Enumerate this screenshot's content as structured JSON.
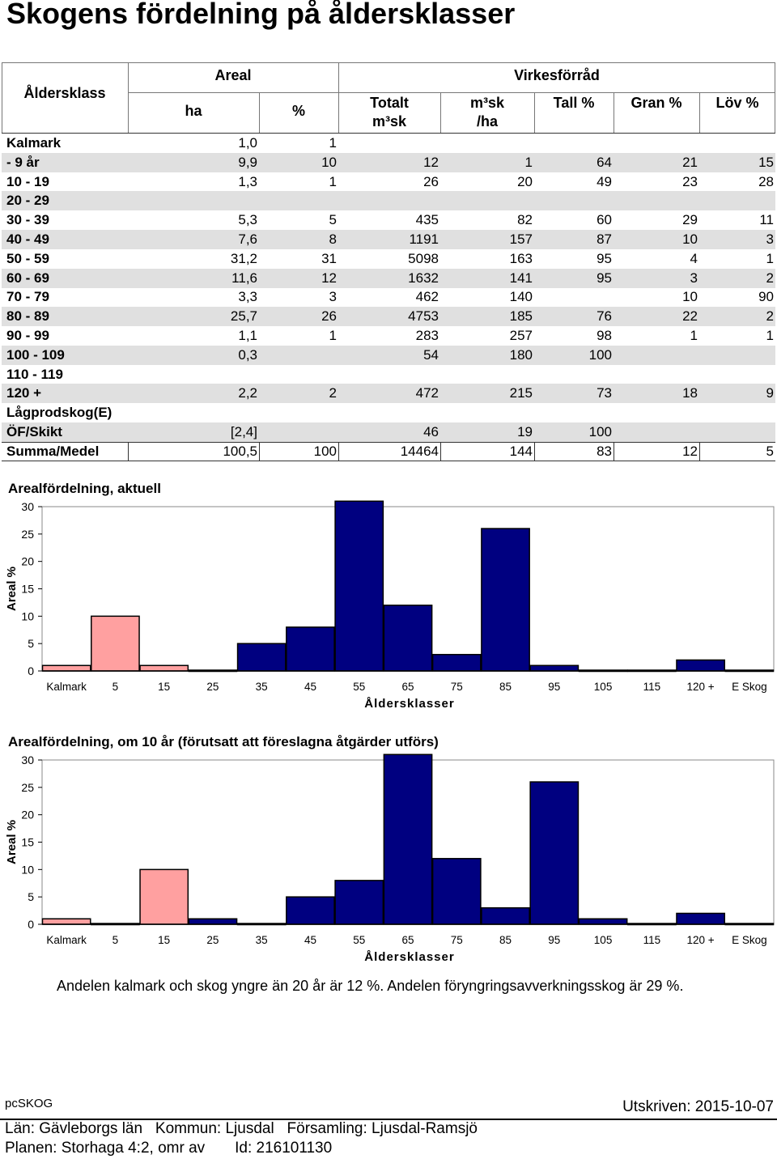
{
  "title": "Skogens fördelning på åldersklasser",
  "table": {
    "headers": {
      "alder": "Åldersklass",
      "areal": "Areal",
      "virkes": "Virkesförråd",
      "ha": "ha",
      "pct": "%",
      "totalt1": "Totalt",
      "totalt2": "m³sk",
      "msk1": "m³sk",
      "msk2": "/ha",
      "tall": "Tall %",
      "gran": "Gran %",
      "lov": "Löv %"
    },
    "rows": [
      {
        "label": "Kalmark",
        "ha": "1,0",
        "pct": "1",
        "tot": "",
        "msk": "",
        "tall": "",
        "gran": "",
        "lov": ""
      },
      {
        "label": "- 9 år",
        "ha": "9,9",
        "pct": "10",
        "tot": "12",
        "msk": "1",
        "tall": "64",
        "gran": "21",
        "lov": "15"
      },
      {
        "label": "10 - 19",
        "ha": "1,3",
        "pct": "1",
        "tot": "26",
        "msk": "20",
        "tall": "49",
        "gran": "23",
        "lov": "28"
      },
      {
        "label": "20 - 29",
        "ha": "",
        "pct": "",
        "tot": "",
        "msk": "",
        "tall": "",
        "gran": "",
        "lov": ""
      },
      {
        "label": "30 - 39",
        "ha": "5,3",
        "pct": "5",
        "tot": "435",
        "msk": "82",
        "tall": "60",
        "gran": "29",
        "lov": "11"
      },
      {
        "label": "40 - 49",
        "ha": "7,6",
        "pct": "8",
        "tot": "1191",
        "msk": "157",
        "tall": "87",
        "gran": "10",
        "lov": "3"
      },
      {
        "label": "50 - 59",
        "ha": "31,2",
        "pct": "31",
        "tot": "5098",
        "msk": "163",
        "tall": "95",
        "gran": "4",
        "lov": "1"
      },
      {
        "label": "60 - 69",
        "ha": "11,6",
        "pct": "12",
        "tot": "1632",
        "msk": "141",
        "tall": "95",
        "gran": "3",
        "lov": "2"
      },
      {
        "label": "70 - 79",
        "ha": "3,3",
        "pct": "3",
        "tot": "462",
        "msk": "140",
        "tall": "",
        "gran": "10",
        "lov": "90"
      },
      {
        "label": "80 - 89",
        "ha": "25,7",
        "pct": "26",
        "tot": "4753",
        "msk": "185",
        "tall": "76",
        "gran": "22",
        "lov": "2"
      },
      {
        "label": "90 - 99",
        "ha": "1,1",
        "pct": "1",
        "tot": "283",
        "msk": "257",
        "tall": "98",
        "gran": "1",
        "lov": "1"
      },
      {
        "label": "100 - 109",
        "ha": "0,3",
        "pct": "",
        "tot": "54",
        "msk": "180",
        "tall": "100",
        "gran": "",
        "lov": ""
      },
      {
        "label": "110 - 119",
        "ha": "",
        "pct": "",
        "tot": "",
        "msk": "",
        "tall": "",
        "gran": "",
        "lov": ""
      },
      {
        "label": "120 +",
        "ha": "2,2",
        "pct": "2",
        "tot": "472",
        "msk": "215",
        "tall": "73",
        "gran": "18",
        "lov": "9"
      },
      {
        "label": "Lågprodskog(E)",
        "ha": "",
        "pct": "",
        "tot": "",
        "msk": "",
        "tall": "",
        "gran": "",
        "lov": ""
      },
      {
        "label": "ÖF/Skikt",
        "ha": "[2,4]",
        "pct": "",
        "tot": "46",
        "msk": "19",
        "tall": "100",
        "gran": "",
        "lov": ""
      },
      {
        "label": "Summa/Medel",
        "ha": "100,5",
        "pct": "100",
        "tot": "14464",
        "msk": "144",
        "tall": "83",
        "gran": "12",
        "lov": "5"
      }
    ]
  },
  "chart_data": [
    {
      "type": "bar",
      "title": "Arealfördelning, aktuell",
      "xlabel": "Åldersklasser",
      "ylabel": "Areal %",
      "ylim": [
        0,
        30
      ],
      "yticks": [
        0,
        5,
        10,
        15,
        20,
        25,
        30
      ],
      "categories": [
        "Kalmark",
        "5",
        "15",
        "25",
        "35",
        "45",
        "55",
        "65",
        "75",
        "85",
        "95",
        "105",
        "115",
        "120 +",
        "E Skog"
      ],
      "values": [
        1,
        10,
        1,
        0,
        5,
        8,
        31,
        12,
        3,
        26,
        1,
        0,
        0,
        2,
        0
      ],
      "colors": [
        "#ffa0a0",
        "#ffa0a0",
        "#ffa0a0",
        "#000080",
        "#000080",
        "#000080",
        "#000080",
        "#000080",
        "#000080",
        "#000080",
        "#000080",
        "#000080",
        "#000080",
        "#000080",
        "#000080"
      ]
    },
    {
      "type": "bar",
      "title": "Arealfördelning, om 10 år (förutsatt att föreslagna åtgärder utförs)",
      "xlabel": "Åldersklasser",
      "ylabel": "Areal %",
      "ylim": [
        0,
        30
      ],
      "yticks": [
        0,
        5,
        10,
        15,
        20,
        25,
        30
      ],
      "categories": [
        "Kalmark",
        "5",
        "15",
        "25",
        "35",
        "45",
        "55",
        "65",
        "75",
        "85",
        "95",
        "105",
        "115",
        "120 +",
        "E Skog"
      ],
      "values": [
        1,
        0,
        10,
        1,
        0,
        5,
        8,
        31,
        12,
        3,
        26,
        1,
        0,
        2,
        0
      ],
      "colors": [
        "#ffa0a0",
        "#ffa0a0",
        "#ffa0a0",
        "#000080",
        "#000080",
        "#000080",
        "#000080",
        "#000080",
        "#000080",
        "#000080",
        "#000080",
        "#000080",
        "#000080",
        "#000080",
        "#000080"
      ]
    }
  ],
  "note": "Andelen kalmark och skog yngre än 20 år är 12 %. Andelen föryngringsavverkningsskog är 29 %.",
  "footer": {
    "brand": "pcSKOG",
    "printed": "Utskriven: 2015-10-07",
    "location": "Län: Gävleborgs län   Kommun: Ljusdal   Församling: Ljusdal-Ramsjö",
    "plan": "Planen: Storhaga 4:2, omr av       Id: 216101130"
  }
}
